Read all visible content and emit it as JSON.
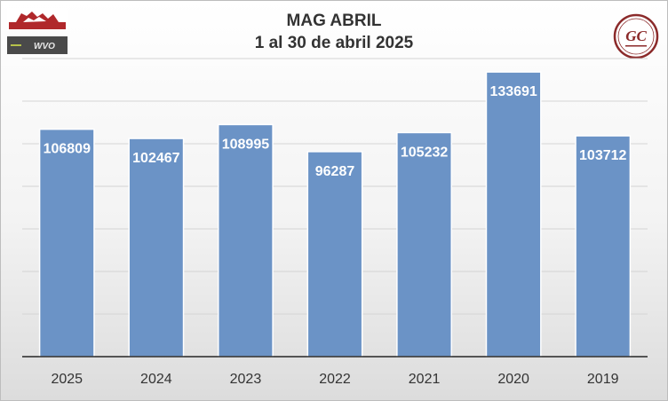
{
  "chart_data": {
    "type": "bar",
    "title": "MAG ABRIL",
    "subtitle": "1 al 30 de abril 2025",
    "categories": [
      "2025",
      "2024",
      "2023",
      "2022",
      "2021",
      "2020",
      "2019"
    ],
    "values": [
      106809,
      102467,
      108995,
      96287,
      105232,
      133691,
      103712
    ],
    "ylim": [
      0,
      140000
    ],
    "grid": true,
    "legend": "none",
    "bar_color": "#6b93c6",
    "label_color": "#ffffff"
  },
  "logos": {
    "top_left": "horse-logo",
    "left": "wvo-logo",
    "top_right": "gc-seal-logo"
  },
  "logo_text": {
    "left": "WVO",
    "top_right": "GC"
  }
}
